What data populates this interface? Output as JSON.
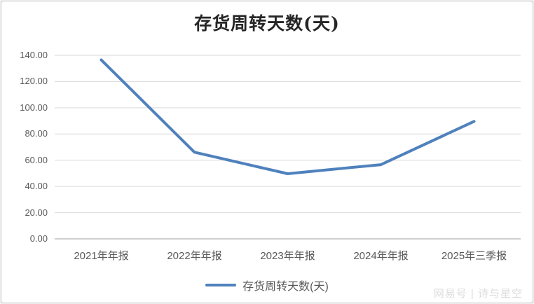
{
  "frame": {
    "background": "#ffffff",
    "border_color": "#c6c6c6"
  },
  "chart_data": {
    "type": "line",
    "title": "存货周转天数(天)",
    "categories": [
      "2021年年报",
      "2022年年报",
      "2023年年报",
      "2024年年报",
      "2025年三季报"
    ],
    "series": [
      {
        "name": "存货周转天数(天)",
        "values": [
          136.5,
          66.1,
          49.7,
          56.6,
          89.6
        ],
        "color": "#4f81bd",
        "line_width": 4
      }
    ],
    "xlabel": "",
    "ylabel": "",
    "ylim": [
      0,
      140
    ],
    "ytick_labels": [
      "0.00",
      "20.00",
      "40.00",
      "60.00",
      "80.00",
      "100.00",
      "120.00",
      "140.00"
    ],
    "grid": true,
    "gridline_color": "#d9d9d9",
    "axisline_color": "#bfbfbf",
    "tick_label_color": "#595959",
    "legend_position": "bottom"
  },
  "legend": {
    "label": "存货周转天数(天)",
    "swatch_color": "#4f81bd"
  },
  "watermark": "网易号 | 诗与星空"
}
